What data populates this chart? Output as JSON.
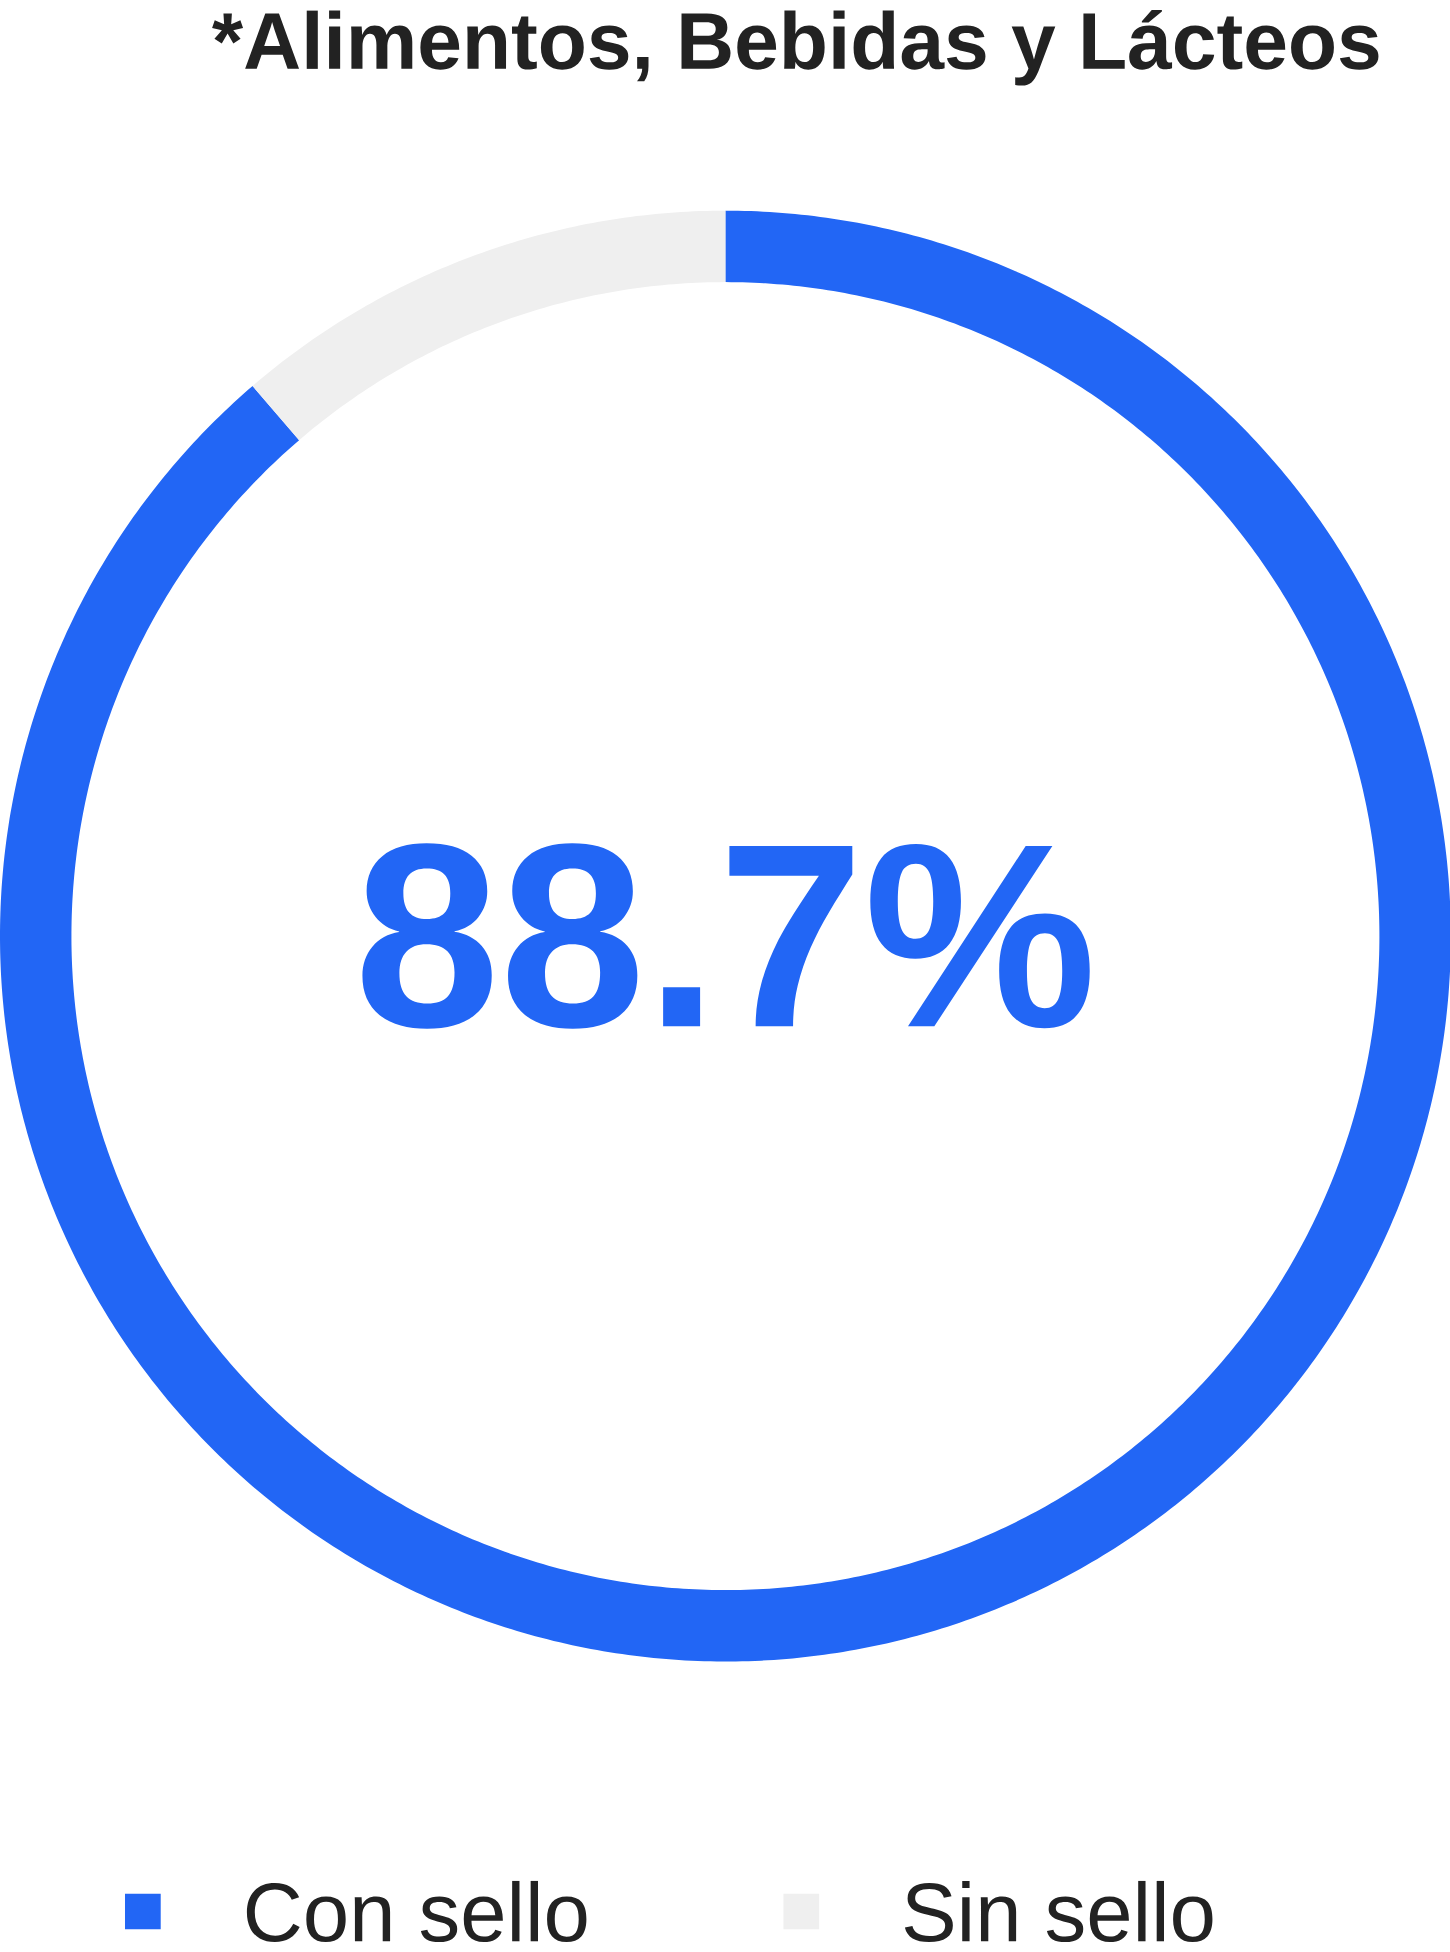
{
  "chart_data": {
    "type": "donut",
    "title": "*Alimentos, Bebidas y Lácteos",
    "categories": [
      "Con sello",
      "Sin sello"
    ],
    "values": [
      88.7,
      11.3
    ],
    "colors": [
      "#2266f5",
      "#efefef"
    ],
    "value_labels": [
      "88.7%",
      null
    ],
    "legend": "bottom"
  }
}
